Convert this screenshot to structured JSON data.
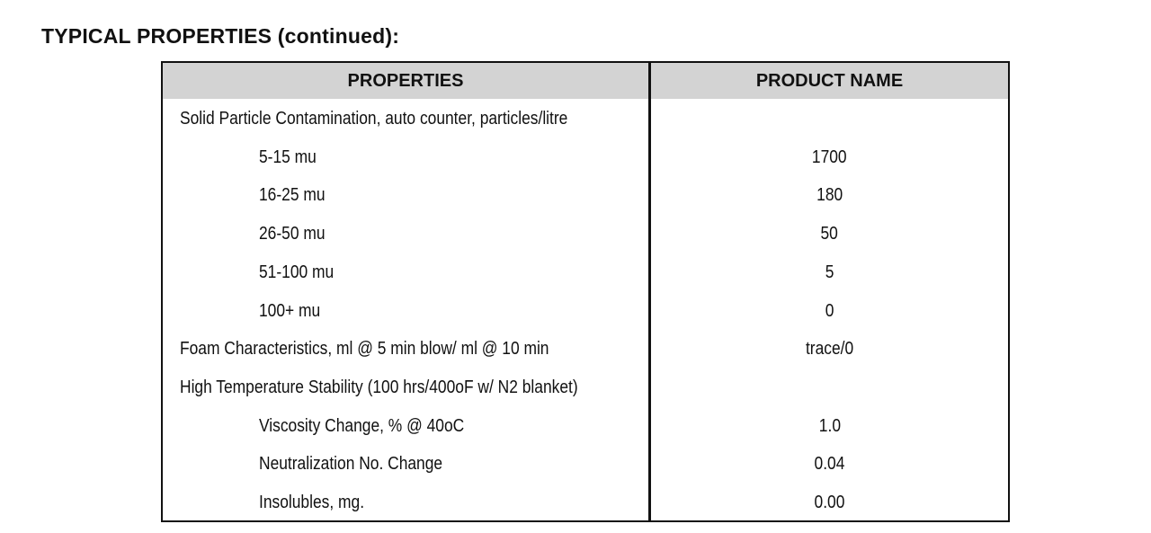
{
  "title": "TYPICAL PROPERTIES (continued):",
  "table": {
    "headers": [
      "PROPERTIES",
      "PRODUCT NAME"
    ],
    "rows": [
      {
        "label": "Solid Particle Contamination, auto counter, particles/litre",
        "value": ""
      },
      {
        "label": "5-15 mu",
        "value": "1700"
      },
      {
        "label": "16-25 mu",
        "value": "180"
      },
      {
        "label": "26-50 mu",
        "value": "50"
      },
      {
        "label": "51-100 mu",
        "value": "5"
      },
      {
        "label": "100+ mu",
        "value": "0"
      },
      {
        "label": "Foam Characteristics, ml @ 5 min blow/ ml @ 10 min",
        "value": "trace/0"
      },
      {
        "label": "High Temperature Stability (100 hrs/400oF w/ N2 blanket)",
        "value": ""
      },
      {
        "label": "Viscosity Change, % @ 40oC",
        "value": "1.0"
      },
      {
        "label": "Neutralization No. Change",
        "value": "0.04"
      },
      {
        "label": "Insolubles, mg.",
        "value": "0.00"
      }
    ]
  }
}
